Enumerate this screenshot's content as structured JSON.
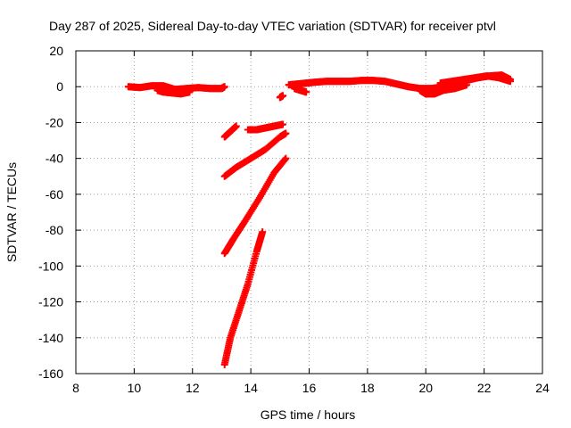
{
  "chart_data": {
    "type": "scatter",
    "title": "Day 287 of 2025, Sidereal Day-to-day VTEC variation (SDTVAR) for receiver ptvl",
    "xlabel": "GPS time / hours",
    "ylabel": "SDTVAR / TECUs",
    "xlim": [
      8,
      24
    ],
    "ylim": [
      -160,
      20
    ],
    "xticks": [
      8,
      10,
      12,
      14,
      16,
      18,
      20,
      22,
      24
    ],
    "yticks": [
      20,
      0,
      -20,
      -40,
      -60,
      -80,
      -100,
      -120,
      -140,
      -160
    ],
    "grid": true,
    "marker": "plus",
    "color": "#ff0000",
    "series": [
      {
        "x": [
          9.8,
          10.2,
          10.6,
          11.0,
          11.4,
          11.8,
          12.2,
          12.6,
          13.0,
          13.1
        ],
        "y": [
          0,
          -0.5,
          0.5,
          0.5,
          -1.5,
          -1,
          -0.5,
          -1,
          -1,
          0
        ]
      },
      {
        "x": [
          10.8,
          11.0,
          11.3,
          11.6,
          11.9
        ],
        "y": [
          -2,
          -3,
          -3.5,
          -4,
          -3
        ]
      },
      {
        "x": [
          13.1,
          13.3,
          13.5
        ],
        "y": [
          -28,
          -25,
          -22
        ]
      },
      {
        "x": [
          13.9,
          14.2,
          14.5,
          14.8,
          15.1
        ],
        "y": [
          -24,
          -24,
          -23,
          -22,
          -21
        ]
      },
      {
        "x": [
          15.0,
          15.1
        ],
        "y": [
          -6,
          -5
        ]
      },
      {
        "x": [
          13.1,
          13.5,
          14.0,
          14.5,
          15.0,
          15.2
        ],
        "y": [
          -50,
          -45,
          -40,
          -35,
          -28,
          -26
        ]
      },
      {
        "x": [
          13.1,
          13.4,
          13.8,
          14.3,
          14.8,
          15.2
        ],
        "y": [
          -93,
          -85,
          -75,
          -62,
          -48,
          -40
        ]
      },
      {
        "x": [
          13.1,
          13.3,
          13.6,
          13.9,
          14.2,
          14.4
        ],
        "y": [
          -155,
          -140,
          -125,
          -110,
          -92,
          -81
        ]
      },
      {
        "x": [
          15.3,
          15.6,
          15.9,
          16.2,
          16.6,
          17.0,
          17.4,
          17.8,
          18.2,
          18.6,
          19.0,
          19.4,
          19.8,
          20.2,
          20.6,
          21.0,
          21.4,
          21.8,
          22.2,
          22.6,
          22.9
        ],
        "y": [
          1,
          1.5,
          2,
          2.5,
          3,
          3,
          3,
          3.5,
          3.5,
          3,
          1.5,
          0,
          -1,
          -1,
          0,
          2,
          3.5,
          5,
          6,
          6.5,
          4
        ]
      },
      {
        "x": [
          15.5,
          15.7,
          15.9
        ],
        "y": [
          -1,
          -2,
          -3
        ]
      },
      {
        "x": [
          19.8,
          20.0,
          20.3,
          20.6,
          21.0,
          21.4
        ],
        "y": [
          -2,
          -4,
          -4,
          -2,
          -1,
          1
        ]
      },
      {
        "x": [
          20.5,
          20.9,
          21.3,
          21.7,
          22.1,
          22.5,
          22.9
        ],
        "y": [
          2,
          3,
          4,
          5,
          6,
          5,
          3
        ]
      }
    ]
  }
}
